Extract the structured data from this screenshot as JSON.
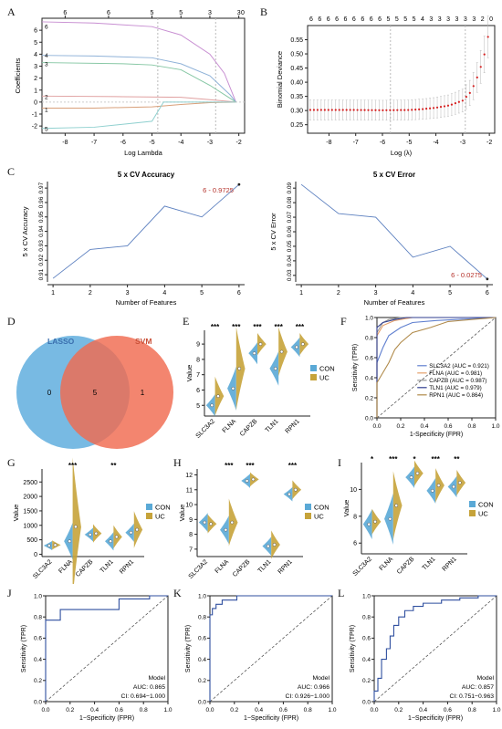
{
  "panel_letters": [
    "A",
    "B",
    "C",
    "D",
    "E",
    "F",
    "G",
    "H",
    "I",
    "J",
    "K",
    "L"
  ],
  "chart_data": [
    {
      "id": "A",
      "type": "line",
      "xlabel": "Log Lambda",
      "ylabel": "Coefficients",
      "xlim": [
        -8.8,
        -1.8
      ],
      "ylim": [
        -2.6,
        7.0
      ],
      "xticks": [
        -8,
        -7,
        -6,
        -5,
        -4,
        -3,
        -2
      ],
      "yticks": [
        -2,
        -1,
        0,
        1,
        2,
        3,
        4,
        5,
        6
      ],
      "top_axis": {
        "positions": [
          -8,
          -6.5,
          -5,
          -4,
          -3,
          -2
        ],
        "labels": [
          "6",
          "6",
          "5",
          "5",
          "3",
          "3"
        ],
        "extra_label": "0"
      },
      "line_labels": [
        {
          "text": "6",
          "y": 6.3
        },
        {
          "text": "4",
          "y": 3.9
        },
        {
          "text": "3",
          "y": 3.2
        },
        {
          "text": "2",
          "y": 0.45
        },
        {
          "text": "1",
          "y": -0.6
        },
        {
          "text": "5",
          "y": -2.2
        }
      ],
      "vlines": [
        -4.8,
        -2.8
      ],
      "series": [
        {
          "color": "#c88fd2",
          "points": [
            [
              -8.8,
              6.7
            ],
            [
              -7,
              6.6
            ],
            [
              -5,
              6.3
            ],
            [
              -4,
              5.6
            ],
            [
              -3,
              4.0
            ],
            [
              -2.5,
              2.4
            ],
            [
              -2.1,
              0.0
            ]
          ]
        },
        {
          "color": "#8fb2d8",
          "points": [
            [
              -8.8,
              3.9
            ],
            [
              -7,
              3.85
            ],
            [
              -5,
              3.7
            ],
            [
              -4,
              3.2
            ],
            [
              -3,
              2.2
            ],
            [
              -2.3,
              0.6
            ],
            [
              -2.1,
              0.0
            ]
          ]
        },
        {
          "color": "#86c7a4",
          "points": [
            [
              -8.8,
              3.3
            ],
            [
              -6,
              3.2
            ],
            [
              -5,
              3.1
            ],
            [
              -4,
              2.7
            ],
            [
              -3,
              1.4
            ],
            [
              -2.1,
              0.0
            ]
          ]
        },
        {
          "color": "#e0a0a0",
          "points": [
            [
              -8.8,
              0.5
            ],
            [
              -6,
              0.45
            ],
            [
              -4,
              0.4
            ],
            [
              -3,
              0.2
            ],
            [
              -2.1,
              0.0
            ]
          ]
        },
        {
          "color": "#d8a07a",
          "points": [
            [
              -8.8,
              -0.5
            ],
            [
              -7,
              -0.5
            ],
            [
              -5,
              -0.4
            ],
            [
              -4,
              -0.2
            ],
            [
              -3,
              -0.05
            ],
            [
              -2.1,
              0.0
            ]
          ]
        },
        {
          "color": "#8fd0cf",
          "points": [
            [
              -8.8,
              -2.2
            ],
            [
              -7,
              -2.1
            ],
            [
              -5,
              -1.6
            ],
            [
              -4.6,
              0.0
            ],
            [
              -4,
              0.0
            ],
            [
              -2.1,
              0.0
            ]
          ]
        }
      ]
    },
    {
      "id": "B",
      "type": "scatter",
      "xlabel": "Log (λ)",
      "ylabel": "Binomial Deviance",
      "xlim": [
        -8.8,
        -1.8
      ],
      "ylim": [
        0.22,
        0.6
      ],
      "xticks": [
        -8,
        -7,
        -6,
        -5,
        -4,
        -3,
        -2
      ],
      "yticks": [
        0.25,
        0.3,
        0.35,
        0.4,
        0.45,
        0.5,
        0.55
      ],
      "top_labels": "6 6 6 6 6 6 6 6 6 5 5 5 5 4 3 3 3 3 3 3 2 0",
      "vlines": [
        -5.7,
        -2.9
      ],
      "curve": [
        [
          -8.7,
          0.302
        ],
        [
          -7,
          0.302
        ],
        [
          -6,
          0.301
        ],
        [
          -5,
          0.302
        ],
        [
          -4.5,
          0.305
        ],
        [
          -4,
          0.31
        ],
        [
          -3.5,
          0.318
        ],
        [
          -3.0,
          0.335
        ],
        [
          -2.7,
          0.365
        ],
        [
          -2.5,
          0.405
        ],
        [
          -2.3,
          0.46
        ],
        [
          -2.15,
          0.51
        ],
        [
          -2.05,
          0.56
        ]
      ]
    },
    {
      "id": "C1",
      "type": "line",
      "title": "5 x CV Accuracy",
      "xlabel": "Number of Features",
      "ylabel": "5 x CV Accuracy",
      "x": [
        1,
        2,
        3,
        4,
        5,
        6
      ],
      "values": [
        0.9075,
        0.9275,
        0.93,
        0.9575,
        0.95,
        0.9725
      ],
      "xlim": [
        0.85,
        6.15
      ],
      "ylim": [
        0.905,
        0.9745
      ],
      "yticks": [
        0.91,
        0.92,
        0.93,
        0.94,
        0.95,
        0.96,
        0.97
      ],
      "yticklabels": [
        "0.91",
        "0.92",
        "0.93",
        "0.94",
        "0.95",
        "0.96",
        "0.97"
      ],
      "annotation": "6 - 0.9725"
    },
    {
      "id": "C2",
      "type": "line",
      "title": "5 x CV Error",
      "xlabel": "Number of Features",
      "ylabel": "5 x CV Error",
      "x": [
        1,
        2,
        3,
        4,
        5,
        6
      ],
      "values": [
        0.0925,
        0.0725,
        0.07,
        0.0425,
        0.05,
        0.0275
      ],
      "xlim": [
        0.85,
        6.15
      ],
      "ylim": [
        0.0255,
        0.0945
      ],
      "yticks": [
        0.03,
        0.04,
        0.05,
        0.06,
        0.07,
        0.08,
        0.09
      ],
      "yticklabels": [
        "0.03",
        "0.04",
        "0.05",
        "0.06",
        "0.07",
        "0.08",
        "0.09"
      ],
      "annotation": "6 - 0.0275"
    },
    {
      "id": "D",
      "type": "venn",
      "sets": [
        {
          "name": "LASSO",
          "color": "#69b3e0"
        },
        {
          "name": "SVM",
          "color": "#f06a4f"
        }
      ],
      "counts": [
        "0",
        "5",
        "1"
      ]
    },
    {
      "id": "E",
      "type": "violin",
      "ylabel": "Value",
      "categories": [
        "SLC3A2",
        "FLNA",
        "CAPZB",
        "TLN1",
        "RPN1"
      ],
      "series_names": [
        "CON",
        "UC"
      ],
      "colors": [
        "#5aa9d6",
        "#c6a33a"
      ],
      "ylim": [
        4.3,
        9.9
      ],
      "yticks": [
        5,
        6,
        7,
        8,
        9
      ],
      "medians": {
        "CON": [
          5.0,
          6.1,
          8.4,
          7.4,
          8.8
        ],
        "UC": [
          5.6,
          7.4,
          9.0,
          8.5,
          9.0
        ]
      },
      "spreads": {
        "CON": [
          0.45,
          0.9,
          0.45,
          0.7,
          0.4
        ],
        "UC": [
          0.8,
          1.7,
          0.45,
          1.0,
          0.45
        ]
      },
      "significance": [
        "***",
        "***",
        "***",
        "***",
        "***"
      ]
    },
    {
      "id": "F",
      "type": "roc",
      "xlabel": "1-Specificity (FPR)",
      "ylabel": "Sensitivity (TPR)",
      "ticks": [
        0.0,
        0.2,
        0.4,
        0.6,
        0.8,
        1.0
      ],
      "ticklabels": [
        "0.0",
        "0.2",
        "0.4",
        "0.6",
        "0.8",
        "1.0"
      ],
      "series": [
        {
          "name": "SLC3A2 (AUC = 0.921)",
          "color": "#5f7fcf",
          "points": [
            [
              0,
              0
            ],
            [
              0,
              0.55
            ],
            [
              0.05,
              0.7
            ],
            [
              0.1,
              0.82
            ],
            [
              0.2,
              0.9
            ],
            [
              0.3,
              0.95
            ],
            [
              0.5,
              0.97
            ],
            [
              1,
              1
            ]
          ]
        },
        {
          "name": "FLNA (AUC = 0.981)",
          "color": "#e5a06a",
          "points": [
            [
              0,
              0
            ],
            [
              0,
              0.82
            ],
            [
              0.05,
              0.92
            ],
            [
              0.15,
              0.97
            ],
            [
              0.3,
              1
            ],
            [
              1,
              1
            ]
          ]
        },
        {
          "name": "CAPZB (AUC = 0.987)",
          "color": "#9a9a9a",
          "points": [
            [
              0,
              0
            ],
            [
              0,
              0.85
            ],
            [
              0.05,
              0.95
            ],
            [
              0.1,
              0.98
            ],
            [
              0.2,
              1
            ],
            [
              1,
              1
            ]
          ]
        },
        {
          "name": "TLN1 (AUC = 0.979)",
          "color": "#2f3d8f",
          "points": [
            [
              0,
              0
            ],
            [
              0,
              0.9
            ],
            [
              0.05,
              0.95
            ],
            [
              0.15,
              0.98
            ],
            [
              0.25,
              1
            ],
            [
              1,
              1
            ]
          ]
        },
        {
          "name": "RPN1 (AUC = 0.864)",
          "color": "#b08a4a",
          "points": [
            [
              0,
              0
            ],
            [
              0,
              0.35
            ],
            [
              0.05,
              0.45
            ],
            [
              0.1,
              0.55
            ],
            [
              0.15,
              0.68
            ],
            [
              0.2,
              0.75
            ],
            [
              0.3,
              0.85
            ],
            [
              0.45,
              0.9
            ],
            [
              0.6,
              0.96
            ],
            [
              1,
              1
            ]
          ]
        }
      ]
    },
    {
      "id": "G",
      "type": "violin",
      "ylabel": "Value",
      "categories": [
        "SLC3A2",
        "FLNA",
        "CAPZB",
        "TLN1",
        "RPN1"
      ],
      "series_names": [
        "CON",
        "UC"
      ],
      "colors": [
        "#5aa9d6",
        "#c6a33a"
      ],
      "ylim": [
        -80,
        2950
      ],
      "yticks": [
        0,
        500,
        1000,
        1500,
        2000,
        2500
      ],
      "medians": {
        "CON": [
          300,
          450,
          680,
          450,
          750
        ],
        "UC": [
          320,
          950,
          720,
          600,
          850
        ]
      },
      "spreads": {
        "CON": [
          100,
          400,
          150,
          200,
          200
        ],
        "UC": [
          100,
          1500,
          200,
          250,
          400
        ]
      },
      "significance": [
        "",
        "***",
        "",
        "**",
        ""
      ]
    },
    {
      "id": "H",
      "type": "violin",
      "ylabel": "Value",
      "categories": [
        "SLC3A2",
        "FLNA",
        "CAPZB",
        "TLN1",
        "RPN1"
      ],
      "series_names": [
        "CON",
        "UC"
      ],
      "colors": [
        "#5aa9d6",
        "#c6a33a"
      ],
      "ylim": [
        6.5,
        12.4
      ],
      "yticks": [
        7,
        8,
        9,
        10,
        11,
        12
      ],
      "medians": {
        "CON": [
          8.8,
          8.3,
          11.6,
          7.2,
          10.7
        ],
        "UC": [
          8.7,
          8.8,
          11.7,
          7.3,
          11.0
        ]
      },
      "spreads": {
        "CON": [
          0.4,
          0.6,
          0.3,
          0.4,
          0.3
        ],
        "UC": [
          0.4,
          1.0,
          0.3,
          0.6,
          0.4
        ]
      },
      "significance": [
        "",
        "***",
        "***",
        "",
        "***"
      ]
    },
    {
      "id": "I",
      "type": "violin",
      "ylabel": "Value",
      "categories": [
        "SLC3A2",
        "FLNA",
        "CAPZB",
        "TLN1",
        "RPN1"
      ],
      "series_names": [
        "CON",
        "UC"
      ],
      "colors": [
        "#5aa9d6",
        "#c6a33a"
      ],
      "ylim": [
        5.2,
        12.0
      ],
      "yticks": [
        6,
        8,
        10
      ],
      "medians": {
        "CON": [
          7.4,
          7.8,
          10.9,
          9.9,
          10.2
        ],
        "UC": [
          7.6,
          8.8,
          11.2,
          10.3,
          10.5
        ]
      },
      "spreads": {
        "CON": [
          0.7,
          1.2,
          0.5,
          0.6,
          0.5
        ],
        "UC": [
          0.6,
          1.6,
          0.6,
          0.8,
          0.6
        ]
      },
      "significance": [
        "*",
        "***",
        "*",
        "***",
        "**"
      ]
    },
    {
      "id": "J",
      "type": "roc",
      "xlabel": "1−Specificity (FPR)",
      "ylabel": "Sensitivity (TPR)",
      "ticks": [
        0,
        0.2,
        0.4,
        0.6,
        0.8,
        1.0
      ],
      "ticklabels": [
        "0.0",
        "0.2",
        "0.4",
        "0.6",
        "0.8",
        "1.0"
      ],
      "legend_title": "Model",
      "auc": "AUC: 0.865",
      "ci": "CI: 0.694−1.000",
      "series": [
        {
          "color": "#2f4f9f",
          "points": [
            [
              0,
              0
            ],
            [
              0,
              0.77
            ],
            [
              0.12,
              0.77
            ],
            [
              0.12,
              0.87
            ],
            [
              0.6,
              0.87
            ],
            [
              0.6,
              0.97
            ],
            [
              0.85,
              0.97
            ],
            [
              0.85,
              1
            ],
            [
              1,
              1
            ]
          ]
        }
      ]
    },
    {
      "id": "K",
      "type": "roc",
      "xlabel": "1−Specificity (FPR)",
      "ylabel": "Sensitivity (TPR)",
      "ticks": [
        0,
        0.2,
        0.4,
        0.6,
        0.8,
        1.0
      ],
      "ticklabels": [
        "0.0",
        "0.2",
        "0.4",
        "0.6",
        "0.8",
        "1.0"
      ],
      "legend_title": "Model",
      "auc": "AUC: 0.966",
      "ci": "CI: 0.926−1.000",
      "series": [
        {
          "color": "#2f4f9f",
          "points": [
            [
              0,
              0
            ],
            [
              0,
              0.82
            ],
            [
              0.02,
              0.82
            ],
            [
              0.02,
              0.88
            ],
            [
              0.05,
              0.88
            ],
            [
              0.05,
              0.92
            ],
            [
              0.1,
              0.92
            ],
            [
              0.1,
              0.96
            ],
            [
              0.22,
              0.96
            ],
            [
              0.22,
              1
            ],
            [
              1,
              1
            ]
          ]
        }
      ]
    },
    {
      "id": "L",
      "type": "roc",
      "xlabel": "1−Specificity (FPR)",
      "ylabel": "Sensitivity (TPR)",
      "ticks": [
        0,
        0.2,
        0.4,
        0.6,
        0.8,
        1.0
      ],
      "ticklabels": [
        "0.0",
        "0.2",
        "0.4",
        "0.6",
        "0.8",
        "1.0"
      ],
      "legend_title": "Model",
      "auc": "AUC: 0.857",
      "ci": "CI: 0.751−0.963",
      "series": [
        {
          "color": "#2f4f9f",
          "points": [
            [
              0,
              0
            ],
            [
              0,
              0.1
            ],
            [
              0.03,
              0.1
            ],
            [
              0.03,
              0.22
            ],
            [
              0.06,
              0.22
            ],
            [
              0.06,
              0.4
            ],
            [
              0.1,
              0.4
            ],
            [
              0.1,
              0.5
            ],
            [
              0.13,
              0.5
            ],
            [
              0.13,
              0.62
            ],
            [
              0.16,
              0.62
            ],
            [
              0.16,
              0.72
            ],
            [
              0.2,
              0.72
            ],
            [
              0.2,
              0.8
            ],
            [
              0.25,
              0.8
            ],
            [
              0.25,
              0.86
            ],
            [
              0.32,
              0.86
            ],
            [
              0.32,
              0.9
            ],
            [
              0.4,
              0.9
            ],
            [
              0.4,
              0.93
            ],
            [
              0.55,
              0.93
            ],
            [
              0.55,
              0.96
            ],
            [
              0.7,
              0.96
            ],
            [
              0.7,
              0.98
            ],
            [
              0.85,
              0.98
            ],
            [
              0.85,
              1
            ],
            [
              1,
              1
            ]
          ]
        }
      ]
    }
  ]
}
